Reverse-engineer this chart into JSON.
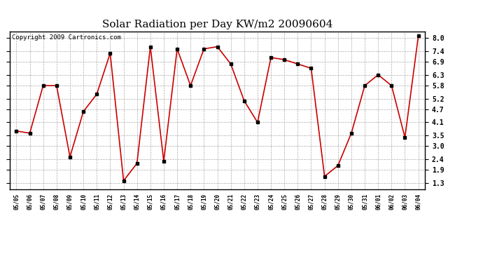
{
  "title": "Solar Radiation per Day KW/m2 20090604",
  "copyright_text": "Copyright 2009 Cartronics.com",
  "dates": [
    "05/05",
    "05/06",
    "05/07",
    "05/08",
    "05/09",
    "05/10",
    "05/11",
    "05/12",
    "05/13",
    "05/14",
    "05/15",
    "05/16",
    "05/17",
    "05/18",
    "05/19",
    "05/20",
    "05/21",
    "05/22",
    "05/23",
    "05/24",
    "05/25",
    "05/26",
    "05/27",
    "05/28",
    "05/29",
    "05/30",
    "05/31",
    "06/01",
    "06/02",
    "06/03",
    "06/04"
  ],
  "values": [
    3.7,
    3.6,
    5.8,
    5.8,
    2.5,
    4.6,
    5.4,
    7.3,
    1.4,
    2.2,
    7.6,
    2.3,
    7.5,
    5.8,
    7.5,
    7.6,
    6.8,
    5.1,
    4.1,
    7.1,
    7.0,
    6.8,
    6.6,
    1.6,
    2.1,
    3.6,
    5.8,
    6.3,
    5.8,
    3.4,
    8.1
  ],
  "line_color": "#cc0000",
  "marker_color": "#000000",
  "background_color": "#ffffff",
  "grid_color": "#aaaaaa",
  "ylim_min": 1.0,
  "ylim_max": 8.3,
  "yticks": [
    1.3,
    1.9,
    2.4,
    3.0,
    3.5,
    4.1,
    4.7,
    5.2,
    5.8,
    6.3,
    6.9,
    7.4,
    8.0
  ],
  "title_fontsize": 11,
  "copyright_fontsize": 6.5
}
